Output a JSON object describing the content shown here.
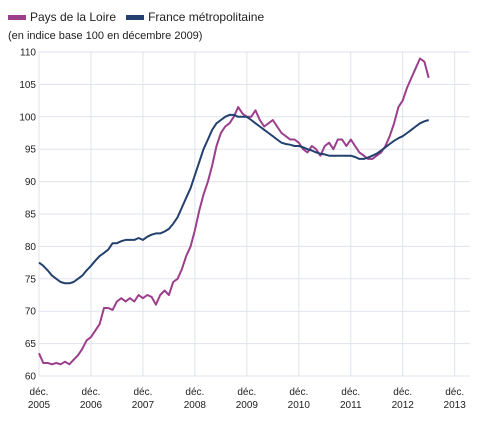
{
  "legend": {
    "series1": "Pays de la Loire",
    "series2": "France métropolitaine"
  },
  "subtitle": "(en indice base 100 en décembre 2009)",
  "colors": {
    "series1": "#9b3e8c",
    "series2": "#24406e",
    "grid": "#dfe3ec"
  },
  "chart_data": {
    "type": "line",
    "subtitle": "(en indice base 100 en décembre 2009)",
    "ylim": [
      60,
      110
    ],
    "yticks": [
      60,
      65,
      70,
      75,
      80,
      85,
      90,
      95,
      100,
      105,
      110
    ],
    "xlim": [
      0,
      90
    ],
    "xticks": [
      {
        "pos": 0,
        "line1": "déc.",
        "line2": "2005"
      },
      {
        "pos": 12,
        "line1": "déc.",
        "line2": "2006"
      },
      {
        "pos": 24,
        "line1": "déc.",
        "line2": "2007"
      },
      {
        "pos": 36,
        "line1": "déc.",
        "line2": "2008"
      },
      {
        "pos": 48,
        "line1": "déc.",
        "line2": "2009"
      },
      {
        "pos": 60,
        "line1": "déc.",
        "line2": "2010"
      },
      {
        "pos": 72,
        "line1": "déc.",
        "line2": "2011"
      },
      {
        "pos": 84,
        "line1": "déc.",
        "line2": "2012"
      },
      {
        "pos": 96,
        "line1": "déc.",
        "line2": "2013"
      }
    ],
    "grid": true,
    "legend_position": "top-left",
    "series": [
      {
        "name": "Pays de la Loire",
        "color": "#9b3e8c",
        "x": [
          0,
          1,
          2,
          3,
          4,
          5,
          6,
          7,
          8,
          9,
          10,
          11,
          12,
          13,
          14,
          15,
          16,
          17,
          18,
          19,
          20,
          21,
          22,
          23,
          24,
          25,
          26,
          27,
          28,
          29,
          30,
          31,
          32,
          33,
          34,
          35,
          36,
          37,
          38,
          39,
          40,
          41,
          42,
          43,
          44,
          45,
          46,
          47,
          48,
          49,
          50,
          51,
          52,
          53,
          54,
          55,
          56,
          57,
          58,
          59,
          60,
          61,
          62,
          63,
          64,
          65,
          66,
          67,
          68,
          69,
          70,
          71,
          72,
          73,
          74,
          75,
          76,
          77,
          78,
          79,
          80,
          81,
          82,
          83,
          84,
          85,
          86,
          87,
          88,
          89,
          90
        ],
        "values": [
          63.5,
          62.0,
          62.0,
          61.8,
          62.0,
          61.8,
          62.2,
          61.8,
          62.5,
          63.2,
          64.2,
          65.5,
          66.0,
          67.0,
          68.0,
          70.5,
          70.5,
          70.2,
          71.5,
          72.0,
          71.5,
          72.0,
          71.5,
          72.5,
          72.0,
          72.5,
          72.2,
          71.0,
          72.5,
          73.2,
          72.5,
          74.5,
          75.0,
          76.5,
          78.5,
          80.0,
          82.5,
          85.5,
          88.0,
          90.0,
          92.5,
          95.5,
          97.5,
          98.5,
          99.0,
          100.0,
          101.5,
          100.5,
          100.0,
          100.0,
          101.0,
          99.5,
          98.5,
          99.0,
          99.5,
          98.5,
          97.5,
          97.0,
          96.5,
          96.5,
          96.0,
          95.0,
          94.5,
          95.5,
          95.0,
          94.0,
          95.5,
          96.0,
          95.0,
          96.5,
          96.5,
          95.5,
          96.5,
          95.5,
          94.5,
          94.0,
          93.5,
          93.5,
          94.0,
          94.5,
          95.5,
          97.0,
          99.0,
          101.5,
          102.5,
          104.5,
          106.0,
          107.5,
          109.0,
          108.5,
          106.0
        ]
      },
      {
        "name": "France métropolitaine",
        "color": "#24406e",
        "x": [
          0,
          1,
          2,
          3,
          4,
          5,
          6,
          7,
          8,
          9,
          10,
          11,
          12,
          13,
          14,
          15,
          16,
          17,
          18,
          19,
          20,
          21,
          22,
          23,
          24,
          25,
          26,
          27,
          28,
          29,
          30,
          31,
          32,
          33,
          34,
          35,
          36,
          37,
          38,
          39,
          40,
          41,
          42,
          43,
          44,
          45,
          46,
          47,
          48,
          49,
          50,
          51,
          52,
          53,
          54,
          55,
          56,
          57,
          58,
          59,
          60,
          61,
          62,
          63,
          64,
          65,
          66,
          67,
          68,
          69,
          70,
          71,
          72,
          73,
          74,
          75,
          76,
          77,
          78,
          79,
          80,
          81,
          82,
          83,
          84,
          85,
          86,
          87,
          88,
          89,
          90
        ],
        "values": [
          77.5,
          77.0,
          76.3,
          75.5,
          75.0,
          74.5,
          74.3,
          74.3,
          74.5,
          75.0,
          75.5,
          76.3,
          77.0,
          77.8,
          78.5,
          79.0,
          79.5,
          80.5,
          80.5,
          80.8,
          81.0,
          81.0,
          81.0,
          81.3,
          81.0,
          81.5,
          81.8,
          82.0,
          82.0,
          82.3,
          82.7,
          83.5,
          84.5,
          86.0,
          87.5,
          89.0,
          91.0,
          93.0,
          95.0,
          96.5,
          98.0,
          99.0,
          99.5,
          100.0,
          100.3,
          100.3,
          100.0,
          100.0,
          100.0,
          99.5,
          99.0,
          98.5,
          98.0,
          97.5,
          97.0,
          96.5,
          96.0,
          95.8,
          95.7,
          95.5,
          95.5,
          95.3,
          95.0,
          94.8,
          94.5,
          94.3,
          94.2,
          94.0,
          94.0,
          94.0,
          94.0,
          94.0,
          94.0,
          93.8,
          93.5,
          93.5,
          93.7,
          94.0,
          94.3,
          94.8,
          95.3,
          95.8,
          96.3,
          96.7,
          97.0,
          97.5,
          98.0,
          98.5,
          99.0,
          99.3,
          99.5
        ]
      }
    ]
  }
}
